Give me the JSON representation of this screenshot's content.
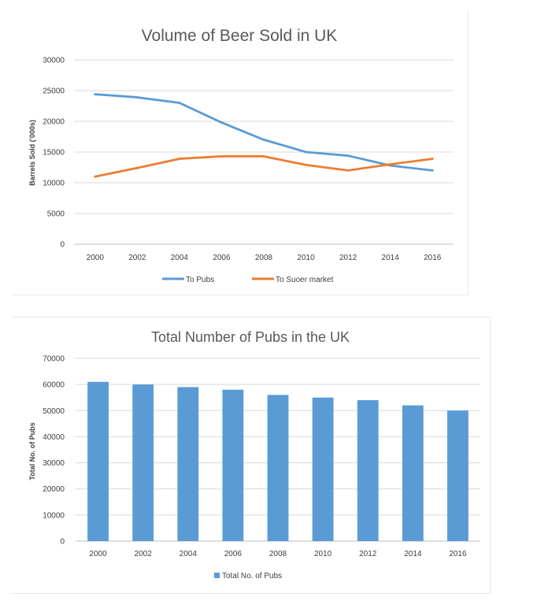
{
  "chart_data": [
    {
      "type": "line",
      "title": "Volume of Beer Sold in UK",
      "xlabel": "",
      "ylabel": "Barrels Sold ('000s)",
      "x": [
        "2000",
        "2002",
        "2004",
        "2006",
        "2008",
        "2010",
        "2012",
        "2014",
        "2016"
      ],
      "ylim": [
        0,
        30000
      ],
      "yticks": [
        "0",
        "5000",
        "10000",
        "15000",
        "20000",
        "25000",
        "30000"
      ],
      "grid": true,
      "legend": "bottom",
      "series": [
        {
          "name": "To Pubs",
          "color": "#5b9bd5",
          "values": [
            24400,
            23900,
            23000,
            19800,
            17000,
            15000,
            14400,
            12800,
            12000
          ]
        },
        {
          "name": "To Suoer market",
          "color": "#ed7d31",
          "values": [
            11000,
            12400,
            13900,
            14300,
            14300,
            12900,
            12000,
            13000,
            13900
          ]
        }
      ]
    },
    {
      "type": "bar",
      "title": "Total Number of Pubs in the UK",
      "xlabel": "",
      "ylabel": "Total No. of Pubs",
      "categories": [
        "2000",
        "2002",
        "2004",
        "2006",
        "2008",
        "2010",
        "2012",
        "2014",
        "2016"
      ],
      "ylim": [
        0,
        70000
      ],
      "yticks": [
        "0",
        "10000",
        "20000",
        "30000",
        "40000",
        "50000",
        "60000",
        "70000"
      ],
      "grid": true,
      "legend": "bottom",
      "series": [
        {
          "name": "Total No. of Pubs",
          "color": "#5b9bd5",
          "values": [
            61000,
            60000,
            59000,
            58000,
            56000,
            55000,
            54000,
            52000,
            50000
          ]
        }
      ]
    }
  ]
}
